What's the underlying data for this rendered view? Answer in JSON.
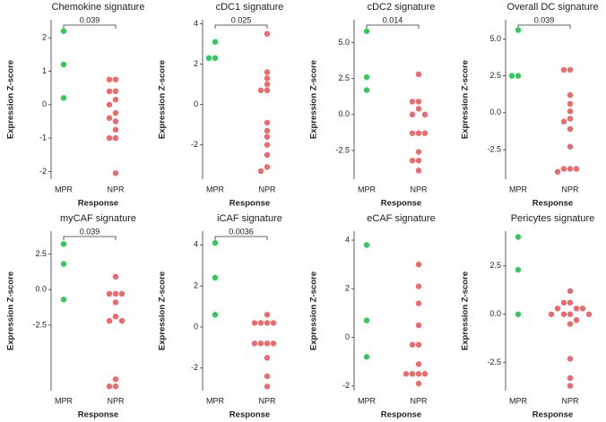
{
  "chart_data": [
    {
      "type": "strip",
      "title": "Chemokine signature",
      "xlabel": "Response",
      "ylabel": "Expression Z-score",
      "annotation": "0.039",
      "categories": [
        "MPR",
        "NPR"
      ],
      "colors": [
        "#2ecc57",
        "#f0686a"
      ],
      "values": [
        [
          2.2,
          1.2,
          0.2
        ],
        [
          0.75,
          0.75,
          0.4,
          0.4,
          0.15,
          0.0,
          -0.25,
          -0.4,
          -0.5,
          -0.75,
          -1.0,
          -1.0,
          -2.05
        ]
      ],
      "ylim": [
        -2.23,
        2.54
      ],
      "yticks": [
        2,
        1,
        0,
        -1,
        -2
      ]
    },
    {
      "type": "strip",
      "title": "cDC1 signature",
      "xlabel": "Response",
      "ylabel": "Expression Z-score",
      "annotation": "0.025",
      "categories": [
        "MPR",
        "NPR"
      ],
      "colors": [
        "#2ecc57",
        "#f0686a"
      ],
      "values": [
        [
          3.1,
          2.3,
          2.3
        ],
        [
          3.5,
          1.6,
          1.3,
          1.0,
          0.7,
          0.7,
          -0.9,
          -1.3,
          -1.6,
          -2.0,
          -2.5,
          -3.1,
          -3.3
        ]
      ],
      "ylim": [
        -3.7,
        4.2
      ],
      "yticks": [
        4,
        2,
        0,
        -2
      ]
    },
    {
      "type": "strip",
      "title": "cDC2 signature",
      "xlabel": "Response",
      "ylabel": "Expression Z-score",
      "annotation": "0.014",
      "categories": [
        "MPR",
        "NPR"
      ],
      "colors": [
        "#2ecc57",
        "#f0686a"
      ],
      "values": [
        [
          5.8,
          2.6,
          1.7
        ],
        [
          2.8,
          0.9,
          0.9,
          0.4,
          0.0,
          0.0,
          -1.3,
          -1.3,
          -1.3,
          -2.6,
          -3.2,
          -3.2,
          -3.9
        ]
      ],
      "ylim": [
        -4.5,
        6.6
      ],
      "yticks": [
        {
          "value": 5,
          "label": "5.0"
        },
        {
          "value": 2.5,
          "label": "2.5"
        },
        {
          "value": 0,
          "label": "0.0"
        },
        {
          "value": -2.5,
          "label": "-2.5"
        }
      ]
    },
    {
      "type": "strip",
      "title": "Overall DC signature",
      "xlabel": "Response",
      "ylabel": "Expression Z-score",
      "annotation": "0.039",
      "categories": [
        "MPR",
        "NPR"
      ],
      "colors": [
        "#2ecc57",
        "#f0686a"
      ],
      "values": [
        [
          5.6,
          2.5,
          2.5
        ],
        [
          2.9,
          2.9,
          1.2,
          0.6,
          0.1,
          -0.4,
          -0.6,
          -1.1,
          -2.3,
          -3.8,
          -3.8,
          -3.8,
          -4.0
        ]
      ],
      "ylim": [
        -4.5,
        6.3
      ],
      "yticks": [
        {
          "value": 5,
          "label": "5.0"
        },
        {
          "value": 2.5,
          "label": "2.5"
        },
        {
          "value": 0,
          "label": "0.0"
        },
        {
          "value": -2.5,
          "label": "-2.5"
        }
      ]
    },
    {
      "type": "strip",
      "title": "myCAF signature",
      "xlabel": "Response",
      "ylabel": "Expression Z-score",
      "annotation": "0.039",
      "categories": [
        "MPR",
        "NPR"
      ],
      "colors": [
        "#2ecc57",
        "#f0686a"
      ],
      "values": [
        [
          3.2,
          1.8,
          -0.7
        ],
        [
          0.9,
          -0.3,
          -0.3,
          -0.3,
          -0.9,
          -1.9,
          -2.2,
          -2.2,
          -6.3,
          -6.8,
          -6.8
        ]
      ],
      "ylim": [
        -7.1,
        4.1
      ],
      "yticks": [
        {
          "value": 2.5,
          "label": "2.5"
        },
        {
          "value": 0,
          "label": "0.0"
        },
        {
          "value": -2.5,
          "label": "-2.5"
        }
      ]
    },
    {
      "type": "strip",
      "title": "iCAF signature",
      "xlabel": "Response",
      "ylabel": "Expression Z-score",
      "annotation": "0.0036",
      "categories": [
        "MPR",
        "NPR"
      ],
      "colors": [
        "#2ecc57",
        "#f0686a"
      ],
      "values": [
        [
          4.1,
          2.4,
          0.6
        ],
        [
          0.6,
          0.2,
          0.2,
          0.2,
          0.2,
          -0.8,
          -0.8,
          -0.8,
          -0.8,
          -1.5,
          -2.4,
          -2.9
        ]
      ],
      "ylim": [
        -3.1,
        4.67
      ],
      "yticks": [
        4,
        2,
        0,
        -2
      ]
    },
    {
      "type": "strip",
      "title": "eCAF signature",
      "xlabel": "Response",
      "ylabel": "Expression Z-score",
      "categories": [
        "MPR",
        "NPR"
      ],
      "colors": [
        "#2ecc57",
        "#f0686a"
      ],
      "values": [
        [
          3.8,
          0.7,
          -0.8
        ],
        [
          3.0,
          2.1,
          1.4,
          0.5,
          -0.3,
          -0.3,
          -1.1,
          -1.5,
          -1.5,
          -1.5,
          -1.5,
          -1.9
        ]
      ],
      "ylim": [
        -2.19,
        4.37
      ],
      "yticks": [
        4,
        2,
        0,
        -2
      ]
    },
    {
      "type": "strip",
      "title": "Pericytes signature",
      "xlabel": "Response",
      "ylabel": "Expression Z-score",
      "categories": [
        "MPR",
        "NPR"
      ],
      "colors": [
        "#2ecc57",
        "#f0686a"
      ],
      "values": [
        [
          4.0,
          2.3,
          0.0
        ],
        [
          1.2,
          0.6,
          0.6,
          0.3,
          0.3,
          0.3,
          0.0,
          0.0,
          0.0,
          0.0,
          -0.3,
          -0.5,
          -2.3,
          -3.3,
          -3.7
        ]
      ],
      "ylim": [
        -3.95,
        4.3
      ],
      "yticks": [
        {
          "value": 2.5,
          "label": "2.5"
        },
        {
          "value": 0,
          "label": "0.0"
        },
        {
          "value": -2.5,
          "label": "-2.5"
        }
      ]
    }
  ]
}
